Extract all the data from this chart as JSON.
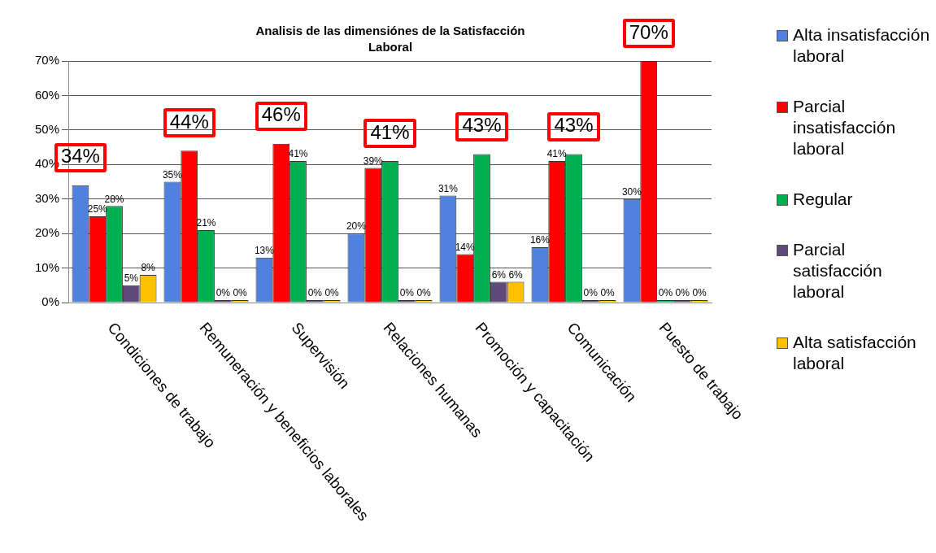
{
  "chart_data": {
    "type": "bar",
    "title": "Analisis  de las dimensiónes  de la Satisfacción  Laboral",
    "categories": [
      "Condiciones de trabajo",
      "Remuneración y beneficios laborales",
      "Supervisión",
      "Relaciones humanas",
      "Promoción y capacitación",
      "Comunicación",
      "Puesto de trabajo"
    ],
    "series": [
      {
        "name": "Alta insatisfacción laboral",
        "color": "#4f81e0",
        "values": [
          34,
          35,
          13,
          20,
          31,
          16,
          30
        ],
        "value_labels": [
          "34%",
          "35%",
          "13%",
          "20%",
          "31%",
          "16%",
          "30%"
        ]
      },
      {
        "name": "Parcial insatisfacción laboral",
        "color": "#ff0000",
        "values": [
          25,
          44,
          46,
          39,
          14,
          41,
          70
        ],
        "value_labels": [
          "25%",
          "44%",
          "46%",
          "39%",
          "14%",
          "41%",
          "70%"
        ]
      },
      {
        "name": "Regular",
        "color": "#00b050",
        "values": [
          28,
          21,
          41,
          41,
          43,
          43,
          0
        ],
        "value_labels": [
          "28%",
          "21%",
          "41%",
          "41%",
          "43%",
          "43%",
          "0%"
        ]
      },
      {
        "name": "Parcial satisfacción laboral",
        "color": "#604a7b",
        "values": [
          5,
          0,
          0,
          0,
          6,
          0,
          0
        ],
        "value_labels": [
          "5%",
          "0%",
          "0%",
          "0%",
          "6%",
          "0%",
          "0%"
        ]
      },
      {
        "name": "Alta satisfacción laboral",
        "color": "#ffc000",
        "values": [
          8,
          0,
          0,
          0,
          6,
          0,
          0
        ],
        "value_labels": [
          "8%",
          "0%",
          "0%",
          "0%",
          "6%",
          "0%",
          "0%"
        ]
      }
    ],
    "ylim": [
      0,
      70
    ],
    "yticks": [
      {
        "value": 0,
        "label": "0%"
      },
      {
        "value": 10,
        "label": "10%"
      },
      {
        "value": 20,
        "label": "20%"
      },
      {
        "value": 30,
        "label": "30%"
      },
      {
        "value": 40,
        "label": "40%"
      },
      {
        "value": 50,
        "label": "50%"
      },
      {
        "value": 60,
        "label": "60%"
      },
      {
        "value": 70,
        "label": "70%"
      }
    ],
    "grid": "y",
    "legend": "right"
  }
}
